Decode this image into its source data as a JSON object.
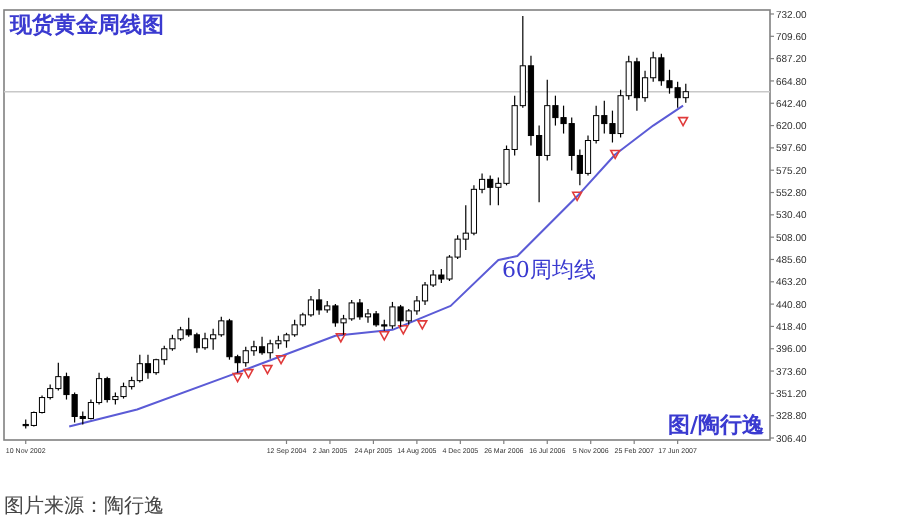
{
  "chart_data": {
    "type": "candlestick",
    "title": "现货黄金周线图",
    "x": [
      "2002-11-10",
      "2002-12-01",
      "2002-12-22",
      "2003-01-12",
      "2003-02-02",
      "2003-02-23",
      "2003-03-16",
      "2003-04-06",
      "2003-04-27",
      "2003-05-18",
      "2003-06-08",
      "2003-06-29",
      "2003-07-20",
      "2003-08-10",
      "2003-08-31",
      "2003-09-21",
      "2003-10-12",
      "2003-11-02",
      "2003-11-23",
      "2003-12-14",
      "2004-01-04",
      "2004-01-25",
      "2004-02-15",
      "2004-03-07",
      "2004-03-28",
      "2004-04-18",
      "2004-05-09",
      "2004-05-30",
      "2004-06-20",
      "2004-07-11",
      "2004-08-01",
      "2004-08-22",
      "2004-09-12",
      "2004-10-03",
      "2004-10-24",
      "2004-11-14",
      "2004-12-05",
      "2004-12-26",
      "2005-01-16",
      "2005-02-06",
      "2005-02-27",
      "2005-03-20",
      "2005-04-10",
      "2005-05-01",
      "2005-05-22",
      "2005-06-12",
      "2005-07-03",
      "2005-07-24",
      "2005-08-14",
      "2005-09-04",
      "2005-09-25",
      "2005-10-16",
      "2005-11-06",
      "2005-11-27",
      "2005-12-18",
      "2006-01-08",
      "2006-01-29",
      "2006-02-19",
      "2006-03-12",
      "2006-04-02",
      "2006-04-23",
      "2006-05-14",
      "2006-06-04",
      "2006-06-25",
      "2006-07-16",
      "2006-08-06",
      "2006-08-27",
      "2006-09-17",
      "2006-10-08",
      "2006-10-29",
      "2006-11-19",
      "2006-12-10",
      "2006-12-31",
      "2007-01-21",
      "2007-02-11",
      "2007-03-04",
      "2007-03-25",
      "2007-04-15",
      "2007-05-06",
      "2007-05-27",
      "2007-06-17",
      "2007-07-08"
    ],
    "ohlc": [
      [
        320,
        325,
        316,
        319
      ],
      [
        319,
        333,
        318,
        332
      ],
      [
        332,
        349,
        331,
        347
      ],
      [
        347,
        360,
        345,
        356
      ],
      [
        356,
        382,
        354,
        368
      ],
      [
        368,
        372,
        345,
        350
      ],
      [
        350,
        352,
        322,
        328
      ],
      [
        328,
        333,
        320,
        326
      ],
      [
        326,
        345,
        325,
        342
      ],
      [
        342,
        372,
        340,
        366
      ],
      [
        366,
        368,
        342,
        345
      ],
      [
        345,
        352,
        340,
        348
      ],
      [
        348,
        362,
        346,
        358
      ],
      [
        358,
        368,
        355,
        364
      ],
      [
        364,
        390,
        362,
        381
      ],
      [
        381,
        390,
        366,
        372
      ],
      [
        372,
        386,
        370,
        385
      ],
      [
        385,
        399,
        380,
        396
      ],
      [
        396,
        410,
        394,
        406
      ],
      [
        406,
        418,
        404,
        415
      ],
      [
        415,
        427,
        408,
        410
      ],
      [
        410,
        412,
        392,
        397
      ],
      [
        397,
        412,
        395,
        406
      ],
      [
        406,
        416,
        395,
        410
      ],
      [
        410,
        428,
        408,
        424
      ],
      [
        424,
        426,
        385,
        388
      ],
      [
        388,
        390,
        372,
        382
      ],
      [
        382,
        398,
        378,
        394
      ],
      [
        394,
        404,
        389,
        398
      ],
      [
        398,
        408,
        390,
        392
      ],
      [
        392,
        405,
        386,
        401
      ],
      [
        401,
        409,
        396,
        404
      ],
      [
        404,
        412,
        397,
        410
      ],
      [
        410,
        425,
        408,
        420
      ],
      [
        420,
        432,
        418,
        430
      ],
      [
        430,
        449,
        428,
        445
      ],
      [
        445,
        456,
        430,
        435
      ],
      [
        435,
        444,
        432,
        439
      ],
      [
        439,
        441,
        418,
        422
      ],
      [
        422,
        430,
        410,
        426
      ],
      [
        426,
        445,
        424,
        442
      ],
      [
        442,
        446,
        425,
        428
      ],
      [
        428,
        436,
        422,
        431
      ],
      [
        431,
        434,
        418,
        420
      ],
      [
        420,
        425,
        414,
        419
      ],
      [
        419,
        443,
        416,
        438
      ],
      [
        438,
        440,
        418,
        424
      ],
      [
        424,
        436,
        420,
        434
      ],
      [
        434,
        449,
        430,
        444
      ],
      [
        444,
        463,
        440,
        460
      ],
      [
        460,
        475,
        458,
        470
      ],
      [
        470,
        476,
        462,
        466
      ],
      [
        466,
        490,
        464,
        488
      ],
      [
        488,
        510,
        486,
        506
      ],
      [
        506,
        540,
        495,
        512
      ],
      [
        512,
        560,
        510,
        556
      ],
      [
        556,
        572,
        552,
        566
      ],
      [
        566,
        570,
        540,
        558
      ],
      [
        558,
        568,
        540,
        562
      ],
      [
        562,
        600,
        560,
        596
      ],
      [
        596,
        650,
        590,
        640
      ],
      [
        640,
        730,
        638,
        680
      ],
      [
        680,
        690,
        600,
        610
      ],
      [
        610,
        620,
        543,
        590
      ],
      [
        590,
        666,
        585,
        640
      ],
      [
        640,
        650,
        620,
        628
      ],
      [
        628,
        640,
        612,
        622
      ],
      [
        622,
        628,
        575,
        590
      ],
      [
        590,
        596,
        560,
        572
      ],
      [
        572,
        610,
        570,
        605
      ],
      [
        605,
        640,
        602,
        630
      ],
      [
        630,
        645,
        612,
        622
      ],
      [
        622,
        635,
        603,
        612
      ],
      [
        612,
        656,
        608,
        650
      ],
      [
        650,
        690,
        646,
        684
      ],
      [
        684,
        688,
        635,
        648
      ],
      [
        648,
        675,
        644,
        668
      ],
      [
        668,
        694,
        664,
        688
      ],
      [
        688,
        692,
        660,
        665
      ],
      [
        665,
        676,
        652,
        658
      ],
      [
        658,
        664,
        638,
        648
      ],
      [
        648,
        662,
        643,
        654
      ]
    ],
    "color": "#000000",
    "series": [
      {
        "type": "line",
        "color": "#5b5bd6",
        "x": [
          "2003-03-02",
          "2003-08-24",
          "2004-05-02",
          "2005-01-16",
          "2005-06-12",
          "2005-11-09",
          "2006-03-12",
          "2006-04-30",
          "2006-10-01",
          "2007-01-07",
          "2007-04-15",
          "2007-07-01"
        ],
        "values": [
          318,
          335,
          371,
          409,
          415,
          439,
          485,
          489,
          549,
          591,
          620,
          640
        ]
      },
      {
        "type": "scatter",
        "color": "#e03a3a",
        "marker": "triangle",
        "x": [
          "2004-05-09",
          "2004-06-06",
          "2004-07-25",
          "2004-08-29",
          "2005-01-30",
          "2005-05-22",
          "2005-07-10",
          "2005-08-28",
          "2006-10-01",
          "2007-01-07",
          "2007-07-01"
        ],
        "values": [
          367,
          371,
          375,
          385,
          407,
          409,
          415,
          420,
          549,
          591,
          624
        ]
      }
    ],
    "xlim": [
      "2002-09-15",
      "2008-02-10"
    ],
    "xticks": [
      {
        "value": "2002-11-10",
        "label": "10 Nov 2002"
      },
      {
        "value": "2004-09-12",
        "label": "12 Sep 2004"
      },
      {
        "value": "2005-01-02",
        "label": "2 Jan 2005"
      },
      {
        "value": "2005-04-24",
        "label": "24 Apr 2005"
      },
      {
        "value": "2005-08-14",
        "label": "14 Aug 2005"
      },
      {
        "value": "2005-12-04",
        "label": "4 Dec 2005"
      },
      {
        "value": "2006-03-26",
        "label": "26 Mar 2006"
      },
      {
        "value": "2006-07-16",
        "label": "16 Jul 2006"
      },
      {
        "value": "2006-11-05",
        "label": "5 Nov 2006"
      },
      {
        "value": "2007-02-25",
        "label": "25 Feb 2007"
      },
      {
        "value": "2007-06-17",
        "label": "17 Jun 2007"
      }
    ],
    "ylim": [
      304.4,
      736
    ],
    "yticks": [
      {
        "value": 306.4,
        "label": "306.40"
      },
      {
        "value": 328.8,
        "label": "328.80"
      },
      {
        "value": 351.2,
        "label": "351.20"
      },
      {
        "value": 373.6,
        "label": "373.60"
      },
      {
        "value": 396,
        "label": "396.00"
      },
      {
        "value": 418.4,
        "label": "418.40"
      },
      {
        "value": 440.8,
        "label": "440.80"
      },
      {
        "value": 463.2,
        "label": "463.20"
      },
      {
        "value": 485.6,
        "label": "485.60"
      },
      {
        "value": 508,
        "label": "508.00"
      },
      {
        "value": 530.4,
        "label": "530.40"
      },
      {
        "value": 552.8,
        "label": "552.80"
      },
      {
        "value": 575.2,
        "label": "575.20"
      },
      {
        "value": 597.6,
        "label": "597.60"
      },
      {
        "value": 620,
        "label": "620.00"
      },
      {
        "value": 642.4,
        "label": "642.40"
      },
      {
        "value": 664.8,
        "label": "664.80"
      },
      {
        "value": 687.2,
        "label": "687.20"
      },
      {
        "value": 709.6,
        "label": "709.60"
      },
      {
        "value": 732,
        "label": "732.00"
      }
    ],
    "ref_lines": [
      {
        "axis": "y",
        "value": 654,
        "color": "#c8c8c8"
      }
    ],
    "annotations": [
      "60周均线",
      "图/陶行逸",
      "图片来源：陶行逸"
    ],
    "grid": false
  }
}
